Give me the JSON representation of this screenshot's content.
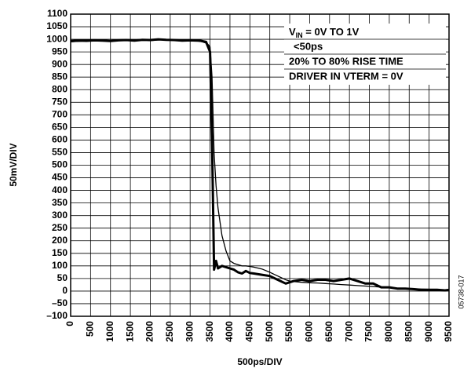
{
  "chart_data": {
    "type": "line",
    "x_label": "500ps/DIV",
    "y_label": "50mV/DIV",
    "figure_id": "05738-017",
    "annotation": {
      "first": {
        "text": "V",
        "sub": "IN",
        "rest": " = 0V TO 1V"
      },
      "lines": [
        "<50ps",
        "20% TO 80% RISE TIME",
        "DRIVER IN VTERM = 0V"
      ]
    },
    "x": [
      0,
      200,
      400,
      600,
      800,
      1000,
      1200,
      1400,
      1600,
      1800,
      2000,
      2200,
      2400,
      2600,
      2800,
      3000,
      3200,
      3300,
      3400,
      3450,
      3500,
      3550,
      3600,
      3650,
      3700,
      3800,
      3900,
      4000,
      4100,
      4200,
      4300,
      4400,
      4500,
      4600,
      4800,
      5000,
      5200,
      5400,
      5500,
      5600,
      5800,
      6000,
      6200,
      6400,
      6600,
      6800,
      7000,
      7200,
      7400,
      7600,
      7800,
      8000,
      8200,
      8400,
      8600,
      8800,
      9000,
      9200,
      9400,
      9500
    ],
    "series": [
      {
        "color": "#000000",
        "width": 3,
        "values": [
          993,
          995,
          994,
          996,
          995,
          993,
          996,
          997,
          995,
          998,
          997,
          1000,
          998,
          997,
          995,
          996,
          995,
          993,
          990,
          970,
          950,
          600,
          85,
          120,
          90,
          100,
          95,
          90,
          85,
          75,
          70,
          80,
          72,
          70,
          65,
          60,
          45,
          30,
          35,
          40,
          45,
          40,
          45,
          45,
          40,
          45,
          50,
          40,
          30,
          30,
          15,
          15,
          10,
          10,
          8,
          5,
          5,
          5,
          3,
          5
        ]
      },
      {
        "color": "#000000",
        "width": 1.3,
        "values": [
          990,
          992,
          994,
          995,
          996,
          994,
          995,
          996,
          995,
          998,
          995,
          997,
          998,
          996,
          994,
          995,
          994,
          990,
          985,
          980,
          970,
          850,
          550,
          420,
          330,
          220,
          160,
          120,
          110,
          105,
          100,
          100,
          98,
          95,
          88,
          75,
          60,
          45,
          40,
          38,
          35,
          33,
          32,
          30,
          28,
          26,
          24,
          22,
          20,
          18,
          16,
          14,
          12,
          10,
          9,
          8,
          7,
          6,
          5,
          5
        ]
      }
    ],
    "xlim": [
      0,
      9500
    ],
    "ylim": [
      -100,
      1100
    ],
    "xticks": [
      0,
      500,
      1000,
      1500,
      2000,
      2500,
      3000,
      3500,
      4000,
      4500,
      5000,
      5500,
      6000,
      6500,
      7000,
      7500,
      8000,
      8500,
      9000,
      9500
    ],
    "yticks": [
      {
        "value": -100,
        "label": "–100"
      },
      {
        "value": -50,
        "label": "–50"
      },
      0,
      50,
      100,
      150,
      200,
      250,
      300,
      350,
      400,
      450,
      500,
      550,
      600,
      650,
      700,
      750,
      800,
      850,
      900,
      950,
      1000,
      1050,
      1100
    ],
    "grid": true
  }
}
